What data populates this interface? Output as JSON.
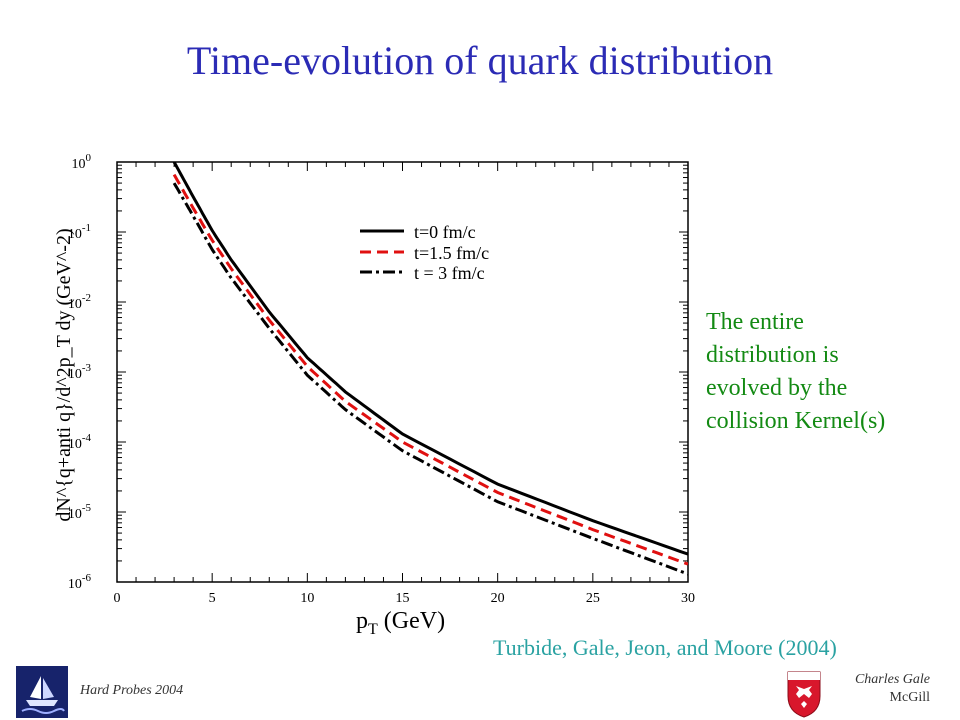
{
  "slide": {
    "title": "Time-evolution of quark distribution",
    "side_note": [
      "The entire",
      "distribution is",
      "evolved by the",
      "collision Kernel(s)"
    ],
    "citation": "Turbide, Gale, Jeon, and Moore (2004)",
    "footer_left": "Hard Probes 2004",
    "footer_right_name": "Charles Gale",
    "footer_right_institution": "McGill"
  },
  "colors": {
    "title": "#2b2bb5",
    "side_note": "#138a13",
    "citation": "#2aa2a2",
    "series_black": "#000000",
    "series_red": "#e01010"
  },
  "chart_data": {
    "type": "line",
    "title": "",
    "xlabel": "p",
    "xlabel_sub": "T",
    "xlabel_unit": " (GeV)",
    "ylabel": "dN^{q+anti q}/d^2p_T dy (GeV^-2)",
    "xlim": [
      0,
      30
    ],
    "ylim": [
      1e-06,
      1
    ],
    "yscale": "log",
    "x_ticks": [
      0,
      5,
      10,
      15,
      20,
      25,
      30
    ],
    "y_ticks": [
      {
        "base": "10",
        "exp": "0",
        "value": 1
      },
      {
        "base": "10",
        "exp": "-1",
        "value": 0.1
      },
      {
        "base": "10",
        "exp": "-2",
        "value": 0.01
      },
      {
        "base": "10",
        "exp": "-3",
        "value": 0.001
      },
      {
        "base": "10",
        "exp": "-4",
        "value": 0.0001
      },
      {
        "base": "10",
        "exp": "-5",
        "value": 1e-05
      },
      {
        "base": "10",
        "exp": "-6",
        "value": 1e-06
      }
    ],
    "legend_position": "upper-right",
    "series": [
      {
        "name": "t=0 fm/c",
        "style": "solid",
        "color": "#000000",
        "x": [
          3.0,
          4.0,
          5.0,
          6.0,
          8.0,
          10.0,
          12.0,
          15.0,
          20.0,
          25.0,
          30.0
        ],
        "y": [
          1.0,
          0.32,
          0.105,
          0.04,
          0.0072,
          0.0016,
          0.00052,
          0.00013,
          2.5e-05,
          7.5e-06,
          2.5e-06
        ]
      },
      {
        "name": "t=1.5 fm/c",
        "style": "dashed",
        "color": "#e01010",
        "x": [
          3.0,
          4.0,
          5.0,
          6.0,
          8.0,
          10.0,
          12.0,
          15.0,
          20.0,
          25.0,
          30.0
        ],
        "y": [
          0.66,
          0.22,
          0.076,
          0.03,
          0.0055,
          0.0012,
          0.00038,
          0.0001,
          1.9e-05,
          5.6e-06,
          1.8e-06
        ]
      },
      {
        "name": "t = 3 fm/c",
        "style": "dashdot",
        "color": "#000000",
        "x": [
          3.0,
          4.0,
          5.0,
          6.0,
          8.0,
          10.0,
          12.0,
          15.0,
          20.0,
          25.0,
          30.0
        ],
        "y": [
          0.5,
          0.17,
          0.056,
          0.022,
          0.0042,
          0.0009,
          0.00029,
          7.5e-05,
          1.4e-05,
          4.2e-06,
          1.3e-06
        ]
      }
    ]
  }
}
